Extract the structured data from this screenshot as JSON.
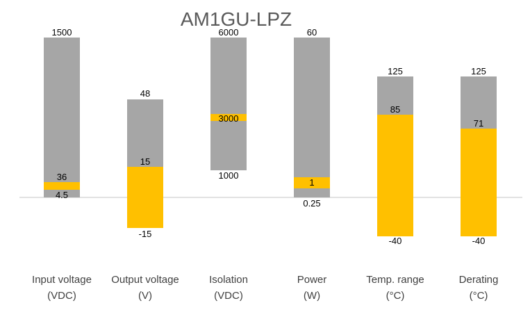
{
  "chart_data": {
    "type": "bar",
    "title": "AM1GU-LPZ",
    "colors": {
      "range": "#a6a6a6",
      "highlight": "#ffc000",
      "axis": "#d9d9d9"
    },
    "categories": [
      {
        "line1": "Input voltage",
        "line2": "(VDC)"
      },
      {
        "line1": "Output voltage",
        "line2": "(V)"
      },
      {
        "line1": "Isolation",
        "line2": "(VDC)"
      },
      {
        "line1": "Power",
        "line2": "(W)"
      },
      {
        "line1": "Temp. range",
        "line2": "(°C)"
      },
      {
        "line1": "Derating",
        "line2": "(°C)"
      }
    ],
    "bars": [
      {
        "category": "Input voltage (VDC)",
        "max": 1500,
        "highlight": 36,
        "min": 4.5,
        "labels": {
          "max": "1500",
          "highlight": "36",
          "min": "4.5"
        }
      },
      {
        "category": "Output voltage (V)",
        "max": 48,
        "highlight_top": 15,
        "highlight_bottom": -15,
        "labels": {
          "max": "48",
          "highlight_top": "15",
          "highlight_bottom": "-15"
        }
      },
      {
        "category": "Isolation (VDC)",
        "max": 6000,
        "highlight": 3000,
        "min": 1000,
        "labels": {
          "max": "6000",
          "highlight": "3000",
          "min": "1000"
        }
      },
      {
        "category": "Power (W)",
        "max": 60,
        "highlight": 1,
        "min": 0.25,
        "labels": {
          "max": "60",
          "highlight": "1",
          "min": "0.25"
        }
      },
      {
        "category": "Temp. range (°C)",
        "max": 125,
        "highlight_top": 85,
        "highlight_bottom": -40,
        "labels": {
          "max": "125",
          "highlight_top": "85",
          "highlight_bottom": "-40"
        }
      },
      {
        "category": "Derating (°C)",
        "max": 125,
        "highlight_top": 71,
        "highlight_bottom": -40,
        "labels": {
          "max": "125",
          "highlight_top": "71",
          "highlight_bottom": "-40"
        }
      }
    ],
    "grid": false,
    "legend": "none"
  }
}
